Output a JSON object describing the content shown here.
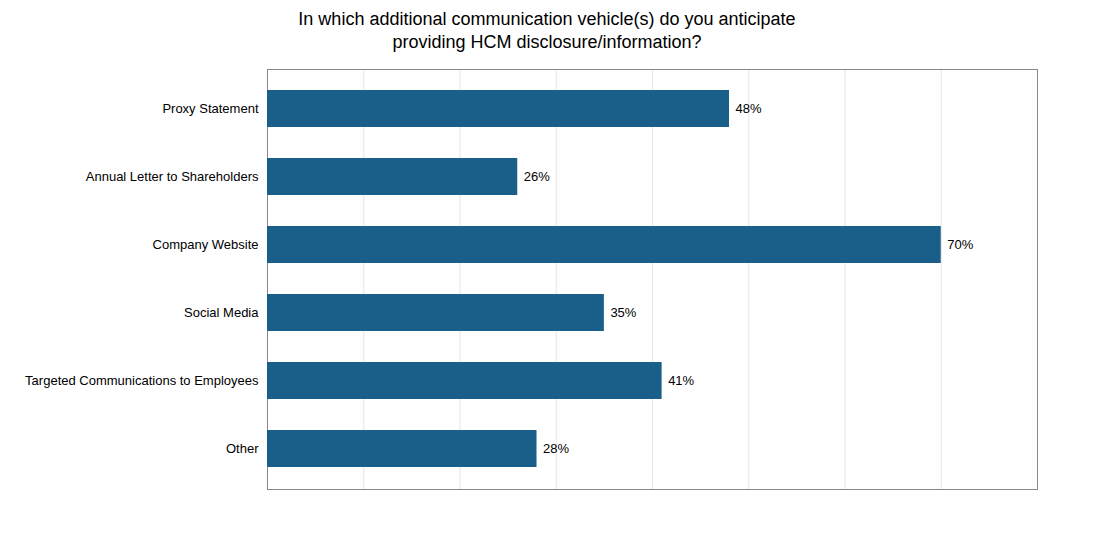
{
  "chart_data": {
    "type": "bar",
    "orientation": "horizontal",
    "title": "In which additional communication vehicle(s) do you anticipate\nproviding HCM disclosure/information?",
    "categories": [
      "Other",
      "Targeted Communications to Employees",
      "Social Media",
      "Company Website",
      "Annual Letter to Shareholders",
      "Proxy Statement"
    ],
    "values": [
      28,
      41,
      35,
      70,
      26,
      48
    ],
    "value_labels": [
      "28%",
      "41%",
      "35%",
      "70%",
      "26%",
      "48%"
    ],
    "data_labels": true,
    "color": "#1a5f8a",
    "xlim": [
      0,
      80
    ],
    "xticks": [
      10,
      20,
      30,
      40,
      50,
      60,
      70,
      80
    ],
    "grid": true,
    "tick_labels": "y"
  }
}
